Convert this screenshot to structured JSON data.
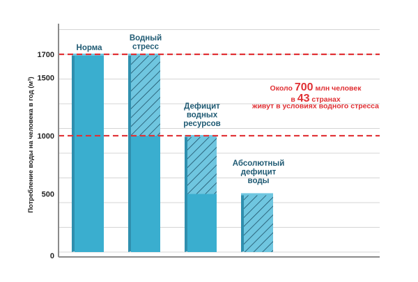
{
  "chart_data": {
    "type": "bar",
    "ylabel": "Потребление воды на человека в год (м³)",
    "yticks": [
      0,
      500,
      1000,
      1500,
      1700
    ],
    "ylim": [
      0,
      1700
    ],
    "grid": true,
    "categories": [
      "Норма",
      "Водный стресс",
      "Дефицит водных ресурсов",
      "Абсолютный дефицит воды"
    ],
    "category_labels": [
      [
        "Норма"
      ],
      [
        "Водный",
        "стресс"
      ],
      [
        "Дефицит",
        "водных",
        "ресурсов"
      ],
      [
        "Абсолютный",
        "дефицит",
        "воды"
      ]
    ],
    "bars": [
      {
        "category": "Норма",
        "solid_value": 1700,
        "hatched_to": null
      },
      {
        "category": "Водный стресс",
        "solid_value": 1000,
        "hatched_to": 1700
      },
      {
        "category": "Дефицит водных ресурсов",
        "solid_value": 500,
        "hatched_to": 1000
      },
      {
        "category": "Абсолютный дефицит воды",
        "solid_value": 0,
        "hatched_to": 500
      }
    ],
    "threshold_lines": [
      1700,
      1000
    ],
    "annotation": {
      "line1_a": "Около ",
      "line1_num": "700",
      "line1_b": " млн человек",
      "line2_a": "в ",
      "line2_num": "43",
      "line2_b": " странах",
      "line3": "живут в условиях водного стресса"
    },
    "colors": {
      "bar": "#3aaecf",
      "bar_side": "#2f8fae",
      "bar_top": "#6fc6e0",
      "hatch": "#1d4f66",
      "label": "#1f5a73",
      "threshold": "#e03034",
      "annotation": "#e03034",
      "grid": "#d5d5d5",
      "axis": "#8a8a8a"
    }
  }
}
